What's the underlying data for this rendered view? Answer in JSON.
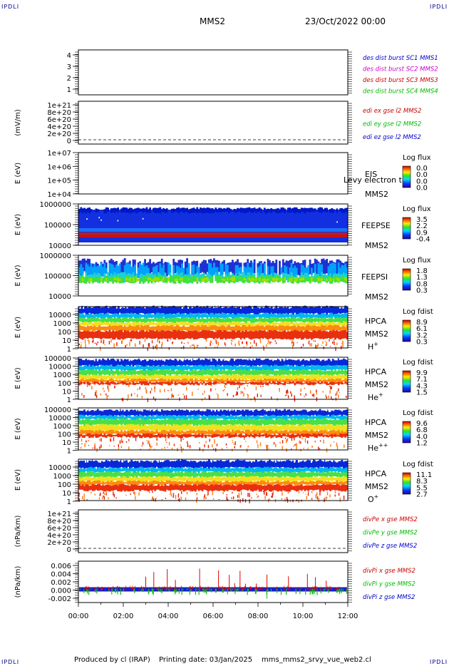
{
  "corner_label": "IPDLI",
  "header": {
    "spacecraft": "MMS2",
    "datetime": "23/Oct/2022 00:00"
  },
  "footer": {
    "produced": "Produced by cl (IRAP)",
    "printed": "Printing date: 03/Jan/2025",
    "file": "mms_mms2_srvy_vue_web2.cl"
  },
  "x_axis": {
    "ticks": [
      "00:00",
      "02:00",
      "04:00",
      "06:00",
      "08:00",
      "10:00",
      "12:00"
    ]
  },
  "chart_data": [
    {
      "type": "line",
      "ylabel": "",
      "yticks": [
        "4",
        "3",
        "2",
        "1"
      ],
      "legend": [
        {
          "text": "des dist burst SC1 MMS1",
          "color": "#0000cc"
        },
        {
          "text": "des dist burst SC2 MMS2",
          "color": "#cc00cc"
        },
        {
          "text": "des dist burst SC3 MMS3",
          "color": "#cc0000"
        },
        {
          "text": "des dist burst SC4 MMS4",
          "color": "#00bb00"
        }
      ]
    },
    {
      "type": "line",
      "ylabel": "(mV/m)",
      "yticks": [
        "1e+21",
        "8e+20",
        "6e+20",
        "4e+20",
        "2e+20",
        "0"
      ],
      "zero_line": true,
      "legend": [
        {
          "text": "edi ex gse l2 MMS2",
          "color": "#cc0000"
        },
        {
          "text": "edi ey gse l2 MMS2",
          "color": "#00bb00"
        },
        {
          "text": "edi ez gse l2 MMS2",
          "color": "#0000cc"
        }
      ]
    },
    {
      "type": "heatmap",
      "ylabel": "E (eV)",
      "yticks": [
        "1e+07",
        "1e+06",
        "1e+05",
        "1e+04"
      ],
      "side_labels": [
        "EIS",
        "MMS2"
      ],
      "overlay_text": "Levy electron to",
      "colorbar": {
        "title": "Log flux",
        "values": [
          "0.0",
          "0.0",
          "0.0",
          "0.0"
        ]
      },
      "fill": "none"
    },
    {
      "type": "heatmap",
      "ylabel": "E (eV)",
      "yticks": [
        "1000000",
        "100000",
        "10000"
      ],
      "side_labels": [
        "FEEPSE",
        "MMS2"
      ],
      "colorbar": {
        "title": "Log flux",
        "values": [
          "3.5",
          "2.2",
          "0.9",
          "-0.4"
        ]
      },
      "fill": "feepse"
    },
    {
      "type": "heatmap",
      "ylabel": "E (eV)",
      "yticks": [
        "1000000",
        "100000",
        "10000"
      ],
      "side_labels": [
        "FEEPSI",
        "MMS2"
      ],
      "colorbar": {
        "title": "Log flux",
        "values": [
          "1.8",
          "1.3",
          "0.8",
          "0.3"
        ]
      },
      "fill": "feepsi"
    },
    {
      "type": "heatmap",
      "ylabel": "E (eV)",
      "yticks": [
        "10000",
        "1000",
        "100",
        "10",
        "1"
      ],
      "side_labels": [
        "HPCA",
        "MMS2",
        "H+"
      ],
      "colorbar": {
        "title": "Log fdist",
        "values": [
          "8.9",
          "6.1",
          "3.2",
          "0.3"
        ]
      },
      "fill": "hplus"
    },
    {
      "type": "heatmap",
      "ylabel": "E (eV)",
      "yticks": [
        "100000",
        "10000",
        "1000",
        "100",
        "10",
        "1"
      ],
      "side_labels": [
        "HPCA",
        "MMS2",
        "He+"
      ],
      "colorbar": {
        "title": "Log fdist",
        "values": [
          "9.9",
          "7.1",
          "4.3",
          "1.5"
        ]
      },
      "fill": "heplus"
    },
    {
      "type": "heatmap",
      "ylabel": "E (eV)",
      "yticks": [
        "100000",
        "10000",
        "1000",
        "100",
        "10",
        "1"
      ],
      "side_labels": [
        "HPCA",
        "MMS2",
        "He++"
      ],
      "colorbar": {
        "title": "Log fdist",
        "values": [
          "9.6",
          "6.8",
          "4.0",
          "1.2"
        ]
      },
      "fill": "hepp"
    },
    {
      "type": "heatmap",
      "ylabel": "E (eV)",
      "yticks": [
        "10000",
        "1000",
        "100",
        "10",
        "1"
      ],
      "side_labels": [
        "HPCA",
        "MMS2",
        "O+"
      ],
      "colorbar": {
        "title": "Log fdist",
        "values": [
          "11.1",
          "8.3",
          "5.5",
          "2.7"
        ]
      },
      "fill": "oplus"
    },
    {
      "type": "line",
      "ylabel": "(nPa/km)",
      "yticks": [
        "1e+21",
        "8e+20",
        "6e+20",
        "4e+20",
        "2e+20",
        "0"
      ],
      "zero_line": true,
      "legend": [
        {
          "text": "divPe x gse MMS2",
          "color": "#cc0000"
        },
        {
          "text": "divPe y gse MMS2",
          "color": "#00bb00"
        },
        {
          "text": "divPe z gse MMS2",
          "color": "#0000cc"
        }
      ]
    },
    {
      "type": "line",
      "ylabel": "(nPa/km)",
      "yticks": [
        "0.006",
        "0.004",
        "0.002",
        "0.000",
        "-0.002"
      ],
      "ylim": [
        -0.003,
        0.0068
      ],
      "spikes": true,
      "legend": [
        {
          "text": "divPi x gse MMS2",
          "color": "#cc0000"
        },
        {
          "text": "divPi y gse MMS2",
          "color": "#00bb00"
        },
        {
          "text": "divPi z gse MMS2",
          "color": "#0000cc"
        }
      ]
    }
  ]
}
